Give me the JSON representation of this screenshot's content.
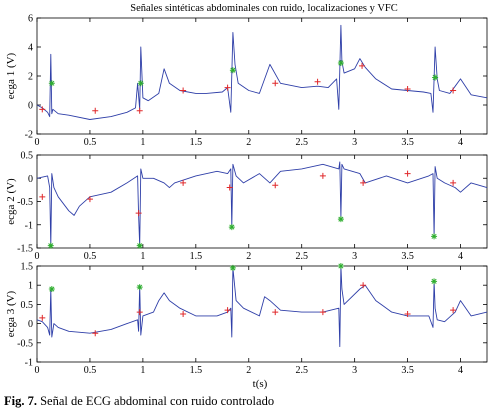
{
  "figure": {
    "caption_label": "Fig. 7.",
    "caption_text": "Señal de ECG abdominal con ruido controlado"
  },
  "chart_data": [
    {
      "type": "line",
      "title": "Señales sintéticas abdominales con ruido, localizaciones y VFC",
      "ylabel": "ecga 1 (V)",
      "xlabel": "",
      "xlim": [
        0,
        4.25
      ],
      "ylim": [
        -2,
        6
      ],
      "yticks": [
        -2,
        0,
        2,
        4,
        6
      ],
      "xticks": [
        0,
        0.5,
        1,
        1.5,
        2,
        2.5,
        3,
        3.5,
        4
      ],
      "grid": false,
      "series": [
        {
          "color": "#2f3fa8",
          "x": [
            0,
            0.05,
            0.1,
            0.12,
            0.13,
            0.14,
            0.15,
            0.2,
            0.3,
            0.5,
            0.7,
            0.85,
            0.93,
            0.95,
            0.97,
            0.98,
            1.0,
            1.05,
            1.15,
            1.2,
            1.25,
            1.35,
            1.5,
            1.6,
            1.75,
            1.8,
            1.83,
            1.85,
            1.87,
            1.9,
            2.0,
            2.1,
            2.2,
            2.3,
            2.5,
            2.65,
            2.75,
            2.83,
            2.85,
            2.87,
            2.88,
            2.9,
            3.0,
            3.05,
            3.1,
            3.2,
            3.35,
            3.5,
            3.65,
            3.72,
            3.74,
            3.76,
            3.78,
            3.8,
            3.9,
            3.95,
            4.0,
            4.1,
            4.25
          ],
          "y": [
            0,
            -0.2,
            -0.5,
            -0.8,
            3.5,
            -0.6,
            -0.3,
            -0.6,
            -0.7,
            -1.0,
            -0.8,
            -0.5,
            -0.2,
            1.5,
            -0.3,
            4.0,
            0.5,
            0.3,
            0.8,
            2.5,
            1.5,
            1.0,
            0.8,
            0.8,
            0.9,
            1.2,
            -0.5,
            5.0,
            2.8,
            1.5,
            1.0,
            0.8,
            2.8,
            1.5,
            1.2,
            1.3,
            1.2,
            1.8,
            -0.3,
            5.5,
            3.0,
            2.2,
            2.5,
            3.2,
            2.6,
            1.8,
            1.1,
            1.0,
            0.9,
            0.8,
            -0.5,
            4.0,
            1.8,
            1.0,
            0.8,
            1.3,
            1.8,
            0.7,
            0.5
          ]
        }
      ],
      "markers": {
        "green": {
          "x": [
            0.14,
            0.98,
            1.85,
            2.87,
            3.76
          ],
          "y": [
            1.5,
            1.5,
            2.4,
            2.9,
            1.9
          ]
        },
        "red": {
          "x": [
            0.05,
            0.55,
            0.97,
            1.38,
            1.8,
            2.25,
            2.65,
            3.07,
            3.5,
            3.93
          ],
          "y": [
            -0.3,
            -0.4,
            -0.4,
            1.0,
            1.2,
            1.5,
            1.6,
            2.7,
            1.1,
            1.0
          ]
        }
      }
    },
    {
      "type": "line",
      "title": "",
      "ylabel": "ecga 2 (V)",
      "xlabel": "",
      "xlim": [
        0,
        4.25
      ],
      "ylim": [
        -1.5,
        0.5
      ],
      "yticks": [
        -1.5,
        -1,
        -0.5,
        0,
        0.5
      ],
      "xticks": [
        0,
        0.5,
        1,
        1.5,
        2,
        2.5,
        3,
        3.5,
        4
      ],
      "grid": false,
      "series": [
        {
          "color": "#2f3fa8",
          "x": [
            0,
            0.1,
            0.12,
            0.13,
            0.14,
            0.16,
            0.2,
            0.3,
            0.35,
            0.4,
            0.5,
            0.7,
            0.85,
            0.95,
            0.96,
            0.97,
            0.98,
            1.0,
            1.1,
            1.2,
            1.25,
            1.3,
            1.5,
            1.7,
            1.8,
            1.83,
            1.84,
            1.85,
            1.88,
            1.95,
            2.1,
            2.2,
            2.3,
            2.5,
            2.7,
            2.85,
            2.86,
            2.87,
            2.88,
            2.9,
            3.05,
            3.1,
            3.3,
            3.5,
            3.7,
            3.74,
            3.75,
            3.76,
            3.78,
            3.85,
            3.95,
            4.0,
            4.1,
            4.25
          ],
          "y": [
            0,
            0.05,
            -0.2,
            -1.45,
            0.1,
            -0.2,
            -0.4,
            -0.7,
            -0.8,
            -0.6,
            -0.4,
            -0.3,
            -0.1,
            0.05,
            -0.8,
            -1.45,
            0.2,
            0,
            0,
            -0.1,
            -0.2,
            -0.1,
            0.05,
            0.15,
            0.1,
            0.2,
            -1.05,
            0.3,
            0.05,
            -0.1,
            0.1,
            -0.1,
            0.15,
            0.2,
            0.3,
            0.2,
            0.35,
            -0.85,
            0.3,
            0.2,
            0.1,
            -0.1,
            0.05,
            -0.1,
            0.05,
            0.1,
            -1.25,
            0.25,
            0,
            -0.1,
            -0.2,
            -0.3,
            -0.1,
            -0.2
          ]
        }
      ],
      "markers": {
        "green": {
          "x": [
            0.13,
            0.97,
            1.84,
            2.87,
            3.75
          ],
          "y": [
            -1.45,
            -1.45,
            -1.05,
            -0.88,
            -1.25
          ]
        },
        "red": {
          "x": [
            0.05,
            0.5,
            0.96,
            1.38,
            1.82,
            2.25,
            2.7,
            3.08,
            3.5,
            3.93
          ],
          "y": [
            -0.4,
            -0.45,
            -0.75,
            -0.1,
            -0.2,
            -0.15,
            0.05,
            -0.1,
            0.1,
            -0.1
          ]
        }
      }
    },
    {
      "type": "line",
      "title": "",
      "ylabel": "ecga 3 (V)",
      "xlabel": "t(s)",
      "xlim": [
        0,
        4.25
      ],
      "ylim": [
        -1,
        1.5
      ],
      "yticks": [
        -1,
        -0.5,
        0,
        0.5,
        1,
        1.5
      ],
      "xticks": [
        0,
        0.5,
        1,
        1.5,
        2,
        2.5,
        3,
        3.5,
        4
      ],
      "grid": false,
      "series": [
        {
          "color": "#2f3fa8",
          "x": [
            0,
            0.05,
            0.1,
            0.12,
            0.13,
            0.14,
            0.16,
            0.2,
            0.3,
            0.5,
            0.7,
            0.85,
            0.95,
            0.96,
            0.97,
            0.98,
            1.0,
            1.1,
            1.15,
            1.2,
            1.25,
            1.35,
            1.5,
            1.7,
            1.8,
            1.83,
            1.84,
            1.85,
            1.88,
            1.95,
            2.1,
            2.15,
            2.2,
            2.3,
            2.5,
            2.7,
            2.85,
            2.86,
            2.87,
            2.88,
            2.9,
            3.05,
            3.1,
            3.2,
            3.35,
            3.5,
            3.7,
            3.74,
            3.75,
            3.76,
            3.78,
            3.85,
            3.95,
            4.0,
            4.1,
            4.25
          ],
          "y": [
            0.1,
            0.05,
            -0.1,
            -0.3,
            0.9,
            -0.35,
            0,
            -0.1,
            -0.2,
            -0.25,
            -0.15,
            0,
            0.1,
            -0.2,
            1.0,
            -0.3,
            0.2,
            0.3,
            0.6,
            0.8,
            0.6,
            0.4,
            0.2,
            0.2,
            0.3,
            0.4,
            -0.35,
            1.45,
            0.6,
            0.4,
            0.2,
            0.7,
            0.6,
            0.35,
            0.3,
            0.3,
            0.4,
            -0.6,
            1.5,
            0.9,
            0.5,
            0.9,
            1.0,
            0.6,
            0.3,
            0.2,
            0.2,
            -0.1,
            1.1,
            0.4,
            0.1,
            0.05,
            0.3,
            0.6,
            0.2,
            0.3
          ]
        }
      ],
      "markers": {
        "green": {
          "x": [
            0.14,
            0.97,
            1.85,
            2.87,
            3.75
          ],
          "y": [
            0.9,
            0.95,
            1.45,
            1.5,
            1.1
          ]
        },
        "red": {
          "x": [
            0.05,
            0.55,
            0.97,
            1.38,
            1.8,
            2.25,
            2.7,
            3.08,
            3.5,
            3.93
          ],
          "y": [
            0.15,
            -0.25,
            0.3,
            0.25,
            0.35,
            0.3,
            0.3,
            1.0,
            0.25,
            0.35
          ]
        }
      }
    }
  ]
}
